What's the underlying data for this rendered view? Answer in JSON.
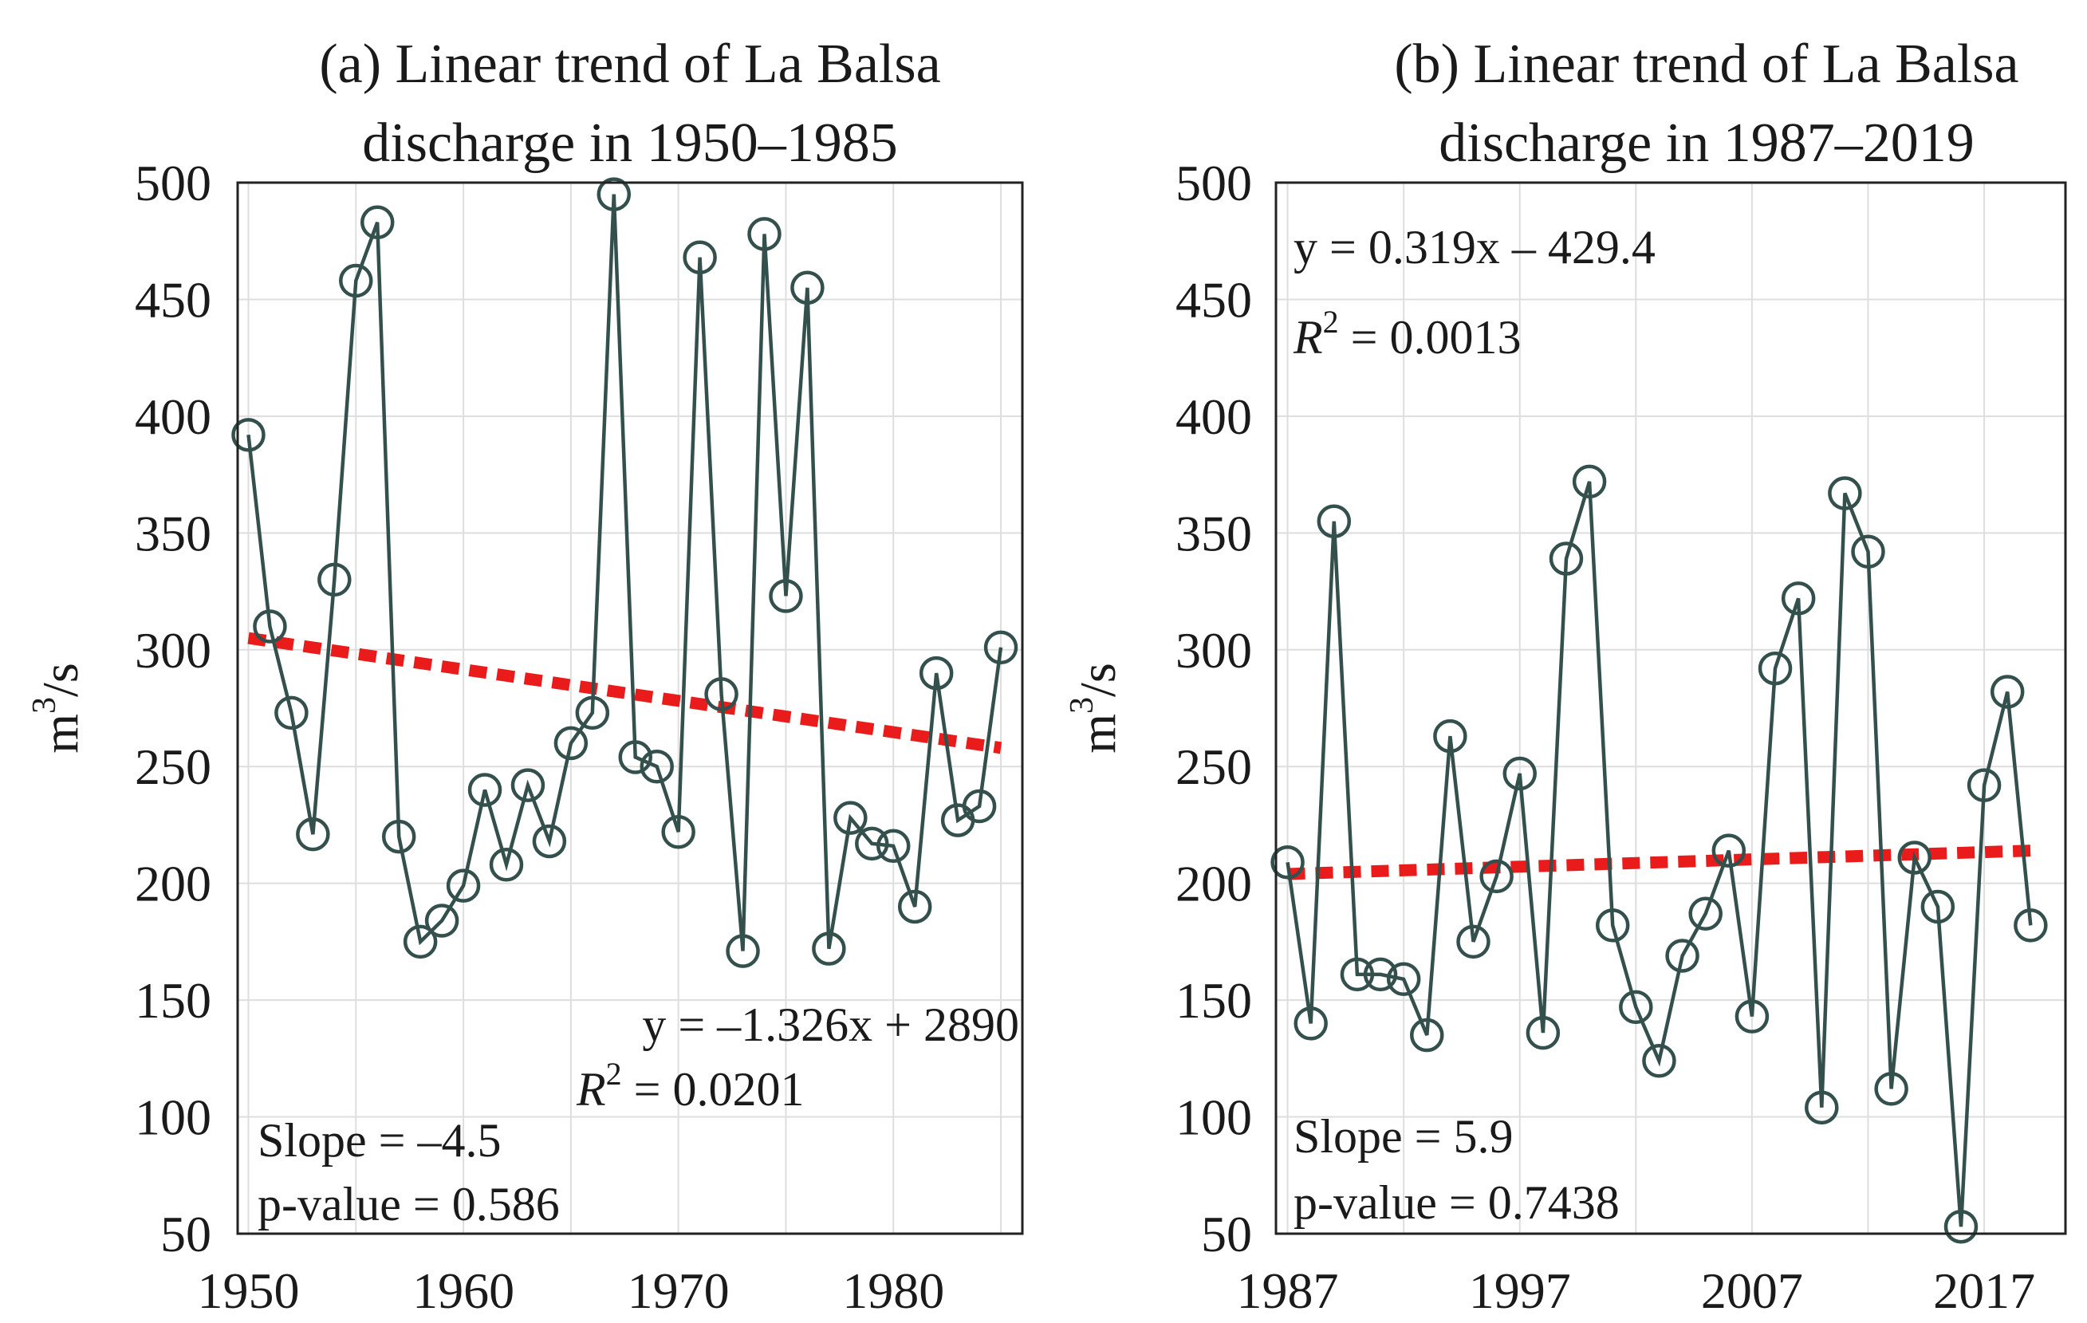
{
  "chart_data": [
    {
      "type": "line",
      "title_line1": "(a) Linear trend of La Balsa",
      "title_line2": "discharge in 1950–1985",
      "ylabel_base": "m",
      "ylabel_sup": "3",
      "ylabel_rest": "/s",
      "xlim": [
        1949.5,
        1986
      ],
      "ylim": [
        50,
        500
      ],
      "xticks": [
        1950,
        1960,
        1970,
        1980
      ],
      "yticks": [
        50,
        100,
        150,
        200,
        250,
        300,
        350,
        400,
        450,
        500
      ],
      "xgrid": [
        1950,
        1955,
        1960,
        1965,
        1970,
        1975,
        1980,
        1985
      ],
      "x": [
        1950,
        1951,
        1952,
        1953,
        1954,
        1955,
        1956,
        1957,
        1958,
        1959,
        1960,
        1961,
        1962,
        1963,
        1964,
        1965,
        1966,
        1967,
        1968,
        1969,
        1970,
        1971,
        1972,
        1973,
        1974,
        1975,
        1976,
        1977,
        1978,
        1979,
        1980,
        1981,
        1982,
        1983,
        1984,
        1985
      ],
      "values": [
        392,
        310,
        273,
        221,
        330,
        458,
        483,
        220,
        175,
        184,
        199,
        240,
        208,
        242,
        218,
        260,
        273,
        495,
        254,
        250,
        222,
        468,
        281,
        171,
        478,
        323,
        455,
        172,
        228,
        217,
        216,
        190,
        290,
        227,
        233,
        301
      ],
      "trend": {
        "x": [
          1950,
          1985
        ],
        "y": [
          305,
          258
        ]
      },
      "equation": "y = –1.326x + 2890",
      "r2_label": "R",
      "r2_sup": "2",
      "r2_value": " = 0.0201",
      "slope_text": "Slope = –4.5",
      "pvalue_text": "p-value = 0.586",
      "series_color": "#34504d",
      "trend_color": "#ea1b1b"
    },
    {
      "type": "line",
      "title_line1": "(b) Linear trend of La Balsa",
      "title_line2": "discharge in 1987–2019",
      "ylabel_base": "m",
      "ylabel_sup": "3",
      "ylabel_rest": "/s",
      "xlim": [
        1986.5,
        2020.5
      ],
      "ylim": [
        50,
        500
      ],
      "xticks": [
        1987,
        1997,
        2007,
        2017
      ],
      "yticks": [
        50,
        100,
        150,
        200,
        250,
        300,
        350,
        400,
        450,
        500
      ],
      "xgrid": [
        1987,
        1992,
        1997,
        2002,
        2007,
        2012,
        2017
      ],
      "x": [
        1987,
        1988,
        1989,
        1990,
        1991,
        1992,
        1993,
        1994,
        1995,
        1996,
        1997,
        1998,
        1999,
        2000,
        2001,
        2002,
        2003,
        2004,
        2005,
        2006,
        2007,
        2008,
        2009,
        2010,
        2011,
        2012,
        2013,
        2014,
        2015,
        2016,
        2017,
        2018,
        2019
      ],
      "values": [
        209,
        140,
        355,
        161,
        161,
        159,
        135,
        263,
        175,
        203,
        247,
        136,
        339,
        372,
        182,
        147,
        124,
        169,
        187,
        214,
        143,
        292,
        322,
        104,
        367,
        342,
        112,
        211,
        190,
        53,
        242,
        282,
        182
      ],
      "trend": {
        "x": [
          1987,
          2019
        ],
        "y": [
          204,
          214
        ]
      },
      "equation": "y = 0.319x – 429.4",
      "r2_label": "R",
      "r2_sup": "2",
      "r2_value": " = 0.0013",
      "slope_text": "Slope = 5.9",
      "pvalue_text": "p-value = 0.7438",
      "series_color": "#34504d",
      "trend_color": "#ea1b1b"
    }
  ]
}
